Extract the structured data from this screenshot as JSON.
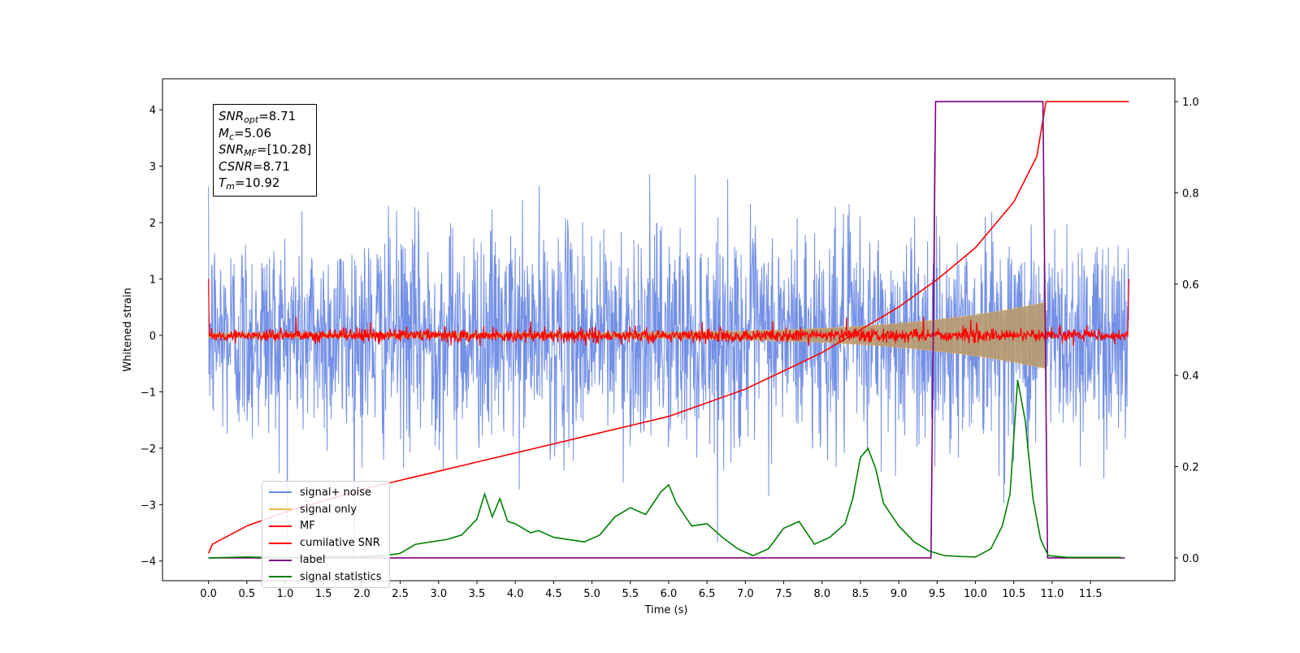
{
  "info_box": {
    "snr_opt_name": "SNR",
    "snr_opt_sub": "opt",
    "snr_opt_value": "=8.71",
    "mc_name": "M",
    "mc_sub": "c",
    "mc_value": "=5.06",
    "snr_mf_name": "SNR",
    "snr_mf_sub": "MF",
    "snr_mf_value": "=[10.28]",
    "csnr_name": "CSNR",
    "csnr_value": "=8.71",
    "tm_name": "T",
    "tm_sub": "m",
    "tm_value": "=10.92"
  },
  "chart_data": {
    "type": "line",
    "xlabel": "Time (s)",
    "ylabel": "Whitened strain",
    "ylabel_right": "",
    "xlim": [
      -0.6,
      12.6
    ],
    "ylim": [
      -4.35,
      4.55
    ],
    "ylim_right": [
      -0.05,
      1.05
    ],
    "x_ticks": [
      0.0,
      0.5,
      1.0,
      1.5,
      2.0,
      2.5,
      3.0,
      3.5,
      4.0,
      4.5,
      5.0,
      5.5,
      6.0,
      6.5,
      7.0,
      7.5,
      8.0,
      8.5,
      9.0,
      9.5,
      10.0,
      10.5,
      11.0,
      11.5
    ],
    "x_tick_labels": [
      "0.0",
      "0.5",
      "1.0",
      "1.5",
      "2.0",
      "2.5",
      "3.0",
      "3.5",
      "4.0",
      "4.5",
      "5.0",
      "5.5",
      "6.0",
      "6.5",
      "7.0",
      "7.5",
      "8.0",
      "8.5",
      "9.0",
      "9.5",
      "10.0",
      "10.5",
      "11.0",
      "11.5"
    ],
    "y_ticks": [
      4,
      3,
      2,
      1,
      0,
      -1,
      -2,
      -3,
      -4
    ],
    "y_tick_labels": [
      "4",
      "3",
      "2",
      "1",
      "0",
      "−1",
      "−2",
      "−3",
      "−4"
    ],
    "y_right_ticks": [
      1.0,
      0.8,
      0.6,
      0.4,
      0.2,
      0.0
    ],
    "y_right_tick_labels": [
      "1.0",
      "0.8",
      "0.6",
      "0.4",
      "0.2",
      "0.0"
    ],
    "legend_position": "lower left",
    "colors": {
      "signal_plus_noise": "#6b8ae6",
      "signal_only": "#f5b84a",
      "mf": "#ff0000",
      "cumulative_snr": "#ff0000",
      "label": "#800080",
      "signal_statistics": "#008000"
    },
    "series": [
      {
        "key": "signal_plus_noise",
        "name": "signal+ noise",
        "axis": "left",
        "t_start": 0.0,
        "t_end": 12.0,
        "noise_std": 0.95,
        "noise_max_abs": 4.2
      },
      {
        "key": "signal_only",
        "name": "signal only",
        "axis": "left",
        "t_start": 0.0,
        "t_end": 10.92,
        "envelope_end": 0.55
      },
      {
        "key": "mf",
        "name": "MF",
        "axis": "left",
        "t_start": 0.0,
        "t_end": 12.0,
        "noise_std": 0.06,
        "start_value": 1.0,
        "end_value": 1.0
      },
      {
        "key": "cumulative_snr",
        "name": "cumilative SNR",
        "axis": "right",
        "x": [
          0.0,
          0.05,
          0.5,
          1.0,
          1.5,
          2.0,
          2.5,
          3.0,
          3.5,
          4.0,
          4.5,
          5.0,
          5.5,
          6.0,
          6.5,
          7.0,
          7.5,
          8.0,
          8.5,
          9.0,
          9.5,
          10.0,
          10.5,
          10.8,
          10.92,
          12.0
        ],
        "y": [
          0.01,
          0.03,
          0.07,
          0.1,
          0.125,
          0.15,
          0.17,
          0.19,
          0.21,
          0.23,
          0.25,
          0.27,
          0.29,
          0.31,
          0.34,
          0.37,
          0.41,
          0.45,
          0.5,
          0.55,
          0.61,
          0.68,
          0.78,
          0.88,
          1.0,
          1.0
        ]
      },
      {
        "key": "label",
        "name": "label",
        "axis": "right",
        "x": [
          0.0,
          9.42,
          9.48,
          10.88,
          10.94,
          11.95
        ],
        "y": [
          0.0,
          0.0,
          1.0,
          1.0,
          0.0,
          0.0
        ]
      },
      {
        "key": "signal_statistics",
        "name": "signal statistics",
        "axis": "right",
        "x": [
          0.0,
          0.5,
          1.0,
          1.5,
          2.0,
          2.3,
          2.5,
          2.7,
          2.9,
          3.1,
          3.3,
          3.5,
          3.6,
          3.7,
          3.8,
          3.9,
          4.0,
          4.2,
          4.3,
          4.5,
          4.7,
          4.9,
          5.1,
          5.3,
          5.5,
          5.7,
          5.9,
          6.0,
          6.1,
          6.3,
          6.5,
          6.7,
          6.9,
          7.1,
          7.3,
          7.5,
          7.7,
          7.9,
          8.1,
          8.3,
          8.4,
          8.5,
          8.6,
          8.7,
          8.8,
          9.0,
          9.2,
          9.4,
          9.6,
          9.8,
          10.0,
          10.2,
          10.35,
          10.45,
          10.55,
          10.65,
          10.75,
          10.85,
          10.95,
          11.2,
          11.5,
          11.9
        ],
        "y": [
          0.0,
          0.002,
          0.0,
          0.002,
          0.003,
          0.005,
          0.01,
          0.03,
          0.035,
          0.04,
          0.05,
          0.085,
          0.14,
          0.09,
          0.13,
          0.08,
          0.075,
          0.055,
          0.06,
          0.045,
          0.04,
          0.035,
          0.05,
          0.09,
          0.11,
          0.095,
          0.145,
          0.16,
          0.12,
          0.07,
          0.075,
          0.045,
          0.02,
          0.005,
          0.02,
          0.065,
          0.08,
          0.03,
          0.045,
          0.075,
          0.13,
          0.22,
          0.24,
          0.195,
          0.12,
          0.07,
          0.035,
          0.015,
          0.005,
          0.003,
          0.002,
          0.02,
          0.07,
          0.14,
          0.39,
          0.3,
          0.13,
          0.04,
          0.005,
          0.001,
          0.001,
          0.001
        ]
      }
    ]
  }
}
